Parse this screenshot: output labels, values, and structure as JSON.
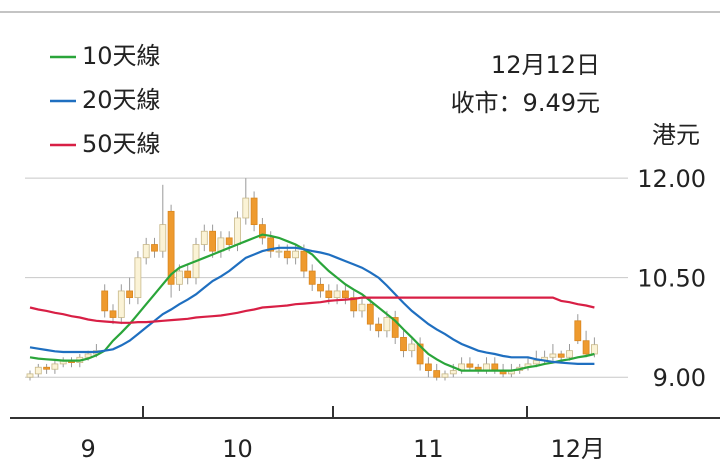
{
  "chart_data": {
    "type": "candlestick",
    "annotations": [
      "12月12日",
      "收市：9.49元"
    ],
    "y_unit": "港元",
    "categories": [
      null,
      null,
      null,
      null,
      null,
      null,
      null,
      "9",
      null,
      null,
      null,
      null,
      null,
      null,
      null,
      null,
      null,
      null,
      null,
      null,
      null,
      null,
      null,
      null,
      null,
      "10",
      null,
      null,
      null,
      null,
      null,
      null,
      null,
      null,
      null,
      null,
      null,
      null,
      null,
      null,
      null,
      null,
      null,
      null,
      null,
      null,
      null,
      null,
      "11",
      null,
      null,
      null,
      null,
      null,
      null,
      null,
      null,
      null,
      null,
      null,
      null,
      null,
      null,
      null,
      null,
      null,
      "12月",
      null,
      null
    ],
    "open": [
      9.0,
      9.05,
      9.15,
      9.12,
      9.2,
      9.25,
      9.22,
      9.3,
      9.35,
      10.3,
      10.0,
      9.9,
      10.3,
      10.2,
      10.8,
      11.0,
      10.9,
      11.5,
      10.4,
      10.6,
      10.5,
      11.0,
      11.2,
      10.9,
      11.1,
      11.0,
      11.4,
      11.7,
      11.3,
      11.1,
      10.9,
      10.9,
      10.8,
      10.9,
      10.6,
      10.4,
      10.3,
      10.2,
      10.3,
      10.2,
      10.0,
      10.1,
      9.8,
      9.7,
      9.9,
      9.6,
      9.4,
      9.5,
      9.2,
      9.1,
      9.0,
      9.05,
      9.1,
      9.2,
      9.15,
      9.1,
      9.2,
      9.1,
      9.05,
      9.1,
      9.15,
      9.2,
      9.25,
      9.3,
      9.35,
      9.3,
      9.85,
      9.55,
      9.35
    ],
    "high": [
      9.1,
      9.2,
      9.2,
      9.25,
      9.3,
      9.3,
      9.35,
      9.4,
      9.5,
      10.4,
      10.1,
      10.4,
      10.5,
      10.9,
      11.1,
      11.1,
      11.9,
      11.6,
      10.7,
      10.7,
      11.1,
      11.3,
      11.3,
      11.2,
      11.2,
      11.5,
      12.0,
      11.8,
      11.4,
      11.2,
      11.0,
      11.0,
      11.0,
      11.0,
      10.7,
      10.5,
      10.4,
      10.4,
      10.4,
      10.3,
      10.2,
      10.2,
      9.9,
      10.0,
      10.0,
      9.7,
      9.6,
      9.6,
      9.3,
      9.2,
      9.1,
      9.2,
      9.3,
      9.3,
      9.2,
      9.3,
      9.3,
      9.2,
      9.2,
      9.2,
      9.3,
      9.4,
      9.4,
      9.5,
      9.4,
      9.5,
      9.95,
      9.7,
      9.6
    ],
    "low": [
      8.95,
      9.0,
      9.05,
      9.05,
      9.15,
      9.15,
      9.15,
      9.25,
      9.3,
      9.9,
      9.8,
      9.8,
      10.1,
      10.1,
      10.7,
      10.8,
      10.8,
      10.2,
      10.3,
      10.4,
      10.4,
      10.9,
      10.8,
      10.8,
      10.9,
      10.9,
      11.3,
      11.2,
      11.0,
      10.8,
      10.8,
      10.7,
      10.7,
      10.5,
      10.3,
      10.2,
      10.1,
      10.1,
      10.1,
      9.9,
      9.9,
      9.7,
      9.6,
      9.6,
      9.5,
      9.3,
      9.3,
      9.1,
      9.0,
      8.95,
      8.95,
      9.0,
      9.05,
      9.1,
      9.05,
      9.05,
      9.05,
      9.0,
      9.0,
      9.05,
      9.1,
      9.15,
      9.2,
      9.25,
      9.25,
      9.25,
      9.5,
      9.3,
      9.3
    ],
    "close": [
      9.05,
      9.15,
      9.12,
      9.2,
      9.25,
      9.22,
      9.3,
      9.35,
      9.4,
      10.0,
      9.9,
      10.3,
      10.2,
      10.8,
      11.0,
      10.9,
      11.3,
      10.4,
      10.6,
      10.5,
      11.0,
      11.2,
      10.9,
      11.1,
      11.0,
      11.4,
      11.7,
      11.3,
      11.1,
      10.9,
      10.9,
      10.8,
      10.9,
      10.6,
      10.4,
      10.3,
      10.2,
      10.3,
      10.2,
      10.0,
      10.1,
      9.8,
      9.7,
      9.9,
      9.6,
      9.4,
      9.5,
      9.2,
      9.1,
      9.0,
      9.05,
      9.1,
      9.2,
      9.15,
      9.1,
      9.2,
      9.1,
      9.05,
      9.1,
      9.15,
      9.2,
      9.25,
      9.3,
      9.35,
      9.3,
      9.4,
      9.55,
      9.35,
      9.49
    ],
    "up_color": "#fbf3d6",
    "down_color": "#ee9a2e",
    "wick_color": "#9a9a9a",
    "series": [
      {
        "name": "10天線",
        "color": "#2aa53a",
        "values": [
          9.3,
          9.28,
          9.27,
          9.26,
          9.25,
          9.25,
          9.25,
          9.28,
          9.33,
          9.4,
          9.55,
          9.67,
          9.8,
          9.95,
          10.1,
          10.25,
          10.4,
          10.55,
          10.65,
          10.7,
          10.75,
          10.8,
          10.85,
          10.9,
          10.95,
          11.0,
          11.05,
          11.1,
          11.15,
          11.13,
          11.1,
          11.05,
          11.0,
          10.93,
          10.85,
          10.72,
          10.6,
          10.5,
          10.4,
          10.32,
          10.25,
          10.15,
          10.05,
          9.95,
          9.85,
          9.72,
          9.6,
          9.47,
          9.35,
          9.27,
          9.2,
          9.15,
          9.1,
          9.1,
          9.1,
          9.1,
          9.1,
          9.1,
          9.1,
          9.12,
          9.15,
          9.17,
          9.2,
          9.22,
          9.25,
          9.27,
          9.3,
          9.32,
          9.35
        ]
      },
      {
        "name": "20天線",
        "color": "#1f6fc0",
        "values": [
          9.45,
          9.43,
          9.41,
          9.39,
          9.38,
          9.38,
          9.38,
          9.38,
          9.38,
          9.4,
          9.42,
          9.48,
          9.55,
          9.65,
          9.75,
          9.85,
          9.95,
          10.02,
          10.1,
          10.17,
          10.25,
          10.35,
          10.45,
          10.52,
          10.6,
          10.7,
          10.8,
          10.85,
          10.9,
          10.93,
          10.95,
          10.95,
          10.95,
          10.93,
          10.9,
          10.88,
          10.85,
          10.8,
          10.75,
          10.7,
          10.65,
          10.58,
          10.5,
          10.38,
          10.25,
          10.12,
          10.0,
          9.9,
          9.8,
          9.72,
          9.65,
          9.57,
          9.5,
          9.45,
          9.4,
          9.37,
          9.35,
          9.32,
          9.3,
          9.3,
          9.3,
          9.27,
          9.25,
          9.23,
          9.22,
          9.21,
          9.2,
          9.2,
          9.2
        ]
      },
      {
        "name": "50天線",
        "color": "#d81f45",
        "values": [
          10.05,
          10.02,
          10.0,
          9.97,
          9.95,
          9.92,
          9.9,
          9.87,
          9.85,
          9.84,
          9.83,
          9.82,
          9.82,
          9.83,
          9.83,
          9.84,
          9.85,
          9.86,
          9.87,
          9.88,
          9.9,
          9.91,
          9.92,
          9.93,
          9.95,
          9.97,
          10.0,
          10.02,
          10.05,
          10.06,
          10.07,
          10.08,
          10.1,
          10.11,
          10.12,
          10.13,
          10.15,
          10.16,
          10.17,
          10.18,
          10.2,
          10.2,
          10.2,
          10.2,
          10.2,
          10.2,
          10.2,
          10.2,
          10.2,
          10.2,
          10.2,
          10.2,
          10.2,
          10.2,
          10.2,
          10.2,
          10.2,
          10.2,
          10.2,
          10.2,
          10.2,
          10.2,
          10.2,
          10.2,
          10.15,
          10.13,
          10.1,
          10.08,
          10.05
        ]
      }
    ],
    "ylim": [
      8.4,
      12.5
    ],
    "yticks": [
      {
        "value": 9,
        "label": "9.00"
      },
      {
        "value": 10.5,
        "label": "10.50"
      },
      {
        "value": 12,
        "label": "12.00"
      }
    ],
    "grid": true
  }
}
